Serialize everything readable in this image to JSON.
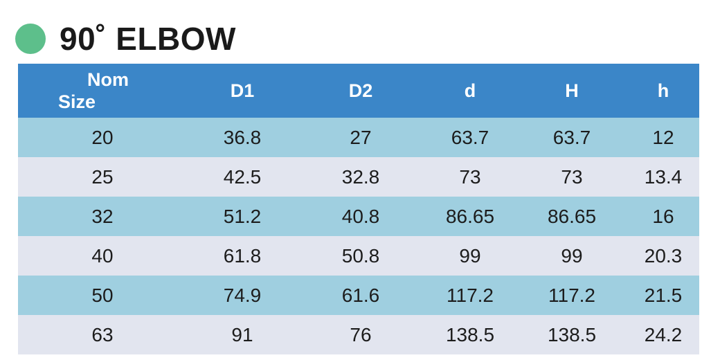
{
  "title": "90˚ ELBOW",
  "colors": {
    "dot": "#5dbf8b",
    "header_bg": "#3b86c8",
    "row_odd": "#9fcfe0",
    "row_even": "#e2e5ef"
  },
  "table": {
    "headers": {
      "nom_line1": "Nom",
      "nom_line2": "Size",
      "d1": "D1",
      "d2": "D2",
      "d": "d",
      "H": "H",
      "h": "h"
    },
    "rows": [
      [
        "20",
        "36.8",
        "27",
        "63.7",
        "63.7",
        "12"
      ],
      [
        "25",
        "42.5",
        "32.8",
        "73",
        "73",
        "13.4"
      ],
      [
        "32",
        "51.2",
        "40.8",
        "86.65",
        "86.65",
        "16"
      ],
      [
        "40",
        "61.8",
        "50.8",
        "99",
        "99",
        "20.3"
      ],
      [
        "50",
        "74.9",
        "61.6",
        "117.2",
        "117.2",
        "21.5"
      ],
      [
        "63",
        "91",
        "76",
        "138.5",
        "138.5",
        "24.2"
      ]
    ]
  }
}
